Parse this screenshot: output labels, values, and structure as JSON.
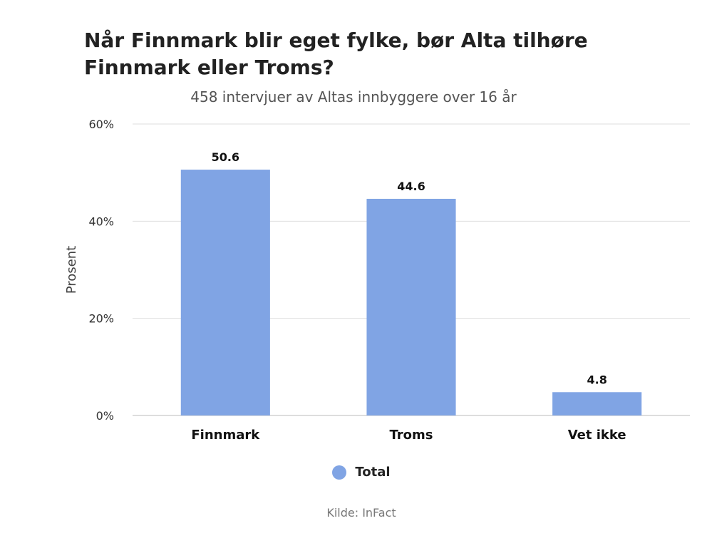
{
  "colors": {
    "bar": "#80a4e4",
    "grid": "#dddddd",
    "axis": "#bbbbbb"
  },
  "chart_data": {
    "type": "bar",
    "title": "Når Finnmark blir eget fylke, bør Alta tilhøre Finnmark eller Troms?",
    "subtitle": "458 intervjuer av Altas innbyggere over 16 år",
    "ylabel": "Prosent",
    "ylim": [
      0,
      60
    ],
    "yticks": [
      "0%",
      "20%",
      "40%",
      "60%"
    ],
    "ytick_values": [
      0,
      20,
      40,
      60
    ],
    "categories": [
      "Finnmark",
      "Troms",
      "Vet ikke"
    ],
    "series": [
      {
        "name": "Total",
        "values": [
          50.6,
          44.6,
          4.8
        ],
        "labels": [
          "50.6",
          "44.6",
          "4.8"
        ]
      }
    ],
    "grid": true,
    "legend": "bottom",
    "source": "Kilde: InFact"
  }
}
